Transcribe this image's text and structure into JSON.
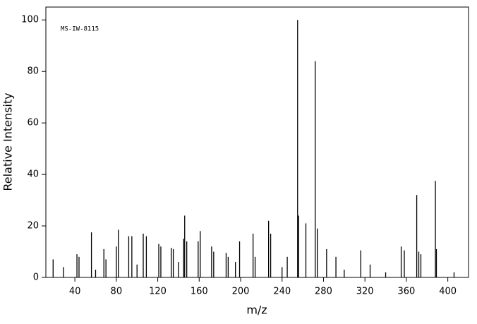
{
  "chart_data": {
    "type": "stick",
    "annotation": "MS-IW-8115",
    "x_label": "m/z",
    "y_label": "Relative Intensity",
    "color": "#000000",
    "x": [
      19,
      29,
      42,
      44,
      56,
      60,
      68,
      70,
      80,
      82,
      92,
      95,
      100,
      106,
      109,
      121,
      123,
      133,
      135,
      140,
      145,
      146,
      148,
      159,
      161,
      172,
      174,
      186,
      188,
      195,
      199,
      212,
      214,
      227,
      229,
      240,
      245,
      255,
      256,
      263,
      272,
      274,
      283,
      292,
      300,
      316,
      325,
      340,
      355,
      358,
      370,
      372,
      374,
      388,
      389,
      406
    ],
    "values": [
      7,
      4,
      9,
      8,
      17.5,
      3,
      11,
      7,
      12,
      18.5,
      16,
      16,
      5,
      17,
      16,
      13,
      12,
      11.5,
      11,
      6,
      15,
      24,
      14,
      14,
      18,
      12,
      10,
      9.5,
      8,
      6,
      14,
      17,
      8,
      22,
      17,
      4,
      8,
      100,
      24,
      21,
      84,
      19,
      11,
      8,
      3,
      10.5,
      5,
      2,
      12,
      10.5,
      32,
      10,
      9,
      37.5,
      11,
      2
    ],
    "xlim": [
      12,
      420
    ],
    "ylim": [
      0,
      105
    ],
    "xticks": [
      40,
      80,
      120,
      160,
      200,
      240,
      280,
      320,
      360,
      400
    ],
    "yticks": [
      0,
      20,
      40,
      60,
      80,
      100
    ]
  }
}
